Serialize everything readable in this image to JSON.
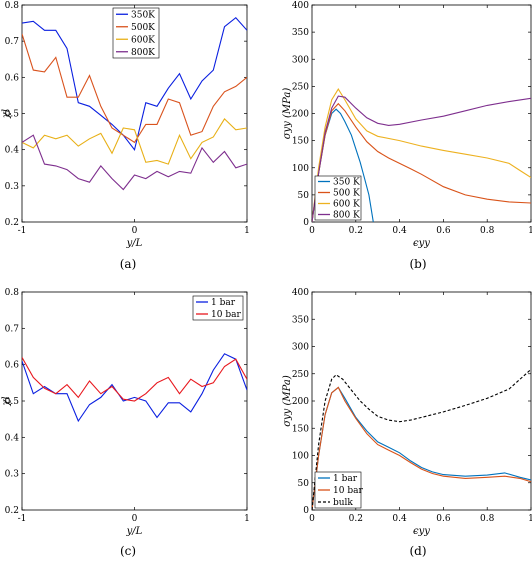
{
  "chart_data": [
    {
      "type": "line",
      "panel": "(a)",
      "xlabel": "y/L",
      "ylabel": "χl",
      "xlim": [
        -1,
        1
      ],
      "ylim": [
        0.2,
        0.8
      ],
      "xticks": [
        -1,
        0,
        1
      ],
      "yticks": [
        0.2,
        0.3,
        0.4,
        0.5,
        0.6,
        0.7,
        0.8
      ],
      "legend": "top-center",
      "x": [
        -1,
        -0.9,
        -0.8,
        -0.7,
        -0.6,
        -0.5,
        -0.4,
        -0.3,
        -0.2,
        -0.1,
        0,
        0.1,
        0.2,
        0.3,
        0.4,
        0.5,
        0.6,
        0.7,
        0.8,
        0.9,
        1
      ],
      "series": [
        {
          "name": "350K",
          "color": "#0a1fe0",
          "values": [
            0.75,
            0.755,
            0.73,
            0.73,
            0.68,
            0.53,
            0.52,
            0.495,
            0.47,
            0.44,
            0.4,
            0.53,
            0.52,
            0.57,
            0.61,
            0.54,
            0.59,
            0.62,
            0.74,
            0.765,
            0.73
          ]
        },
        {
          "name": "500K",
          "color": "#d9531e",
          "values": [
            0.72,
            0.62,
            0.615,
            0.655,
            0.545,
            0.545,
            0.605,
            0.52,
            0.46,
            0.44,
            0.42,
            0.47,
            0.47,
            0.54,
            0.53,
            0.44,
            0.45,
            0.52,
            0.56,
            0.575,
            0.6
          ]
        },
        {
          "name": "600K",
          "color": "#e8b017",
          "values": [
            0.42,
            0.405,
            0.44,
            0.43,
            0.44,
            0.41,
            0.43,
            0.445,
            0.39,
            0.46,
            0.455,
            0.365,
            0.37,
            0.36,
            0.44,
            0.375,
            0.42,
            0.435,
            0.485,
            0.455,
            0.46
          ]
        },
        {
          "name": "800K",
          "color": "#7e2f8e",
          "values": [
            0.42,
            0.44,
            0.36,
            0.355,
            0.345,
            0.32,
            0.31,
            0.355,
            0.32,
            0.29,
            0.33,
            0.32,
            0.34,
            0.325,
            0.34,
            0.335,
            0.405,
            0.365,
            0.395,
            0.35,
            0.36
          ]
        }
      ]
    },
    {
      "type": "line",
      "panel": "(b)",
      "xlabel": "ϵyy",
      "ylabel": "σyy (MPa)",
      "xlim": [
        0,
        1
      ],
      "ylim": [
        0,
        400
      ],
      "xticks": [
        0,
        0.2,
        0.4,
        0.6,
        0.8,
        1
      ],
      "yticks": [
        0,
        50,
        100,
        150,
        200,
        250,
        300,
        350,
        400
      ],
      "legend": "bottom-left",
      "series": [
        {
          "name": "350 K",
          "color": "#0072bd",
          "x": [
            0,
            0.03,
            0.06,
            0.09,
            0.11,
            0.13,
            0.15,
            0.18,
            0.2,
            0.22,
            0.24,
            0.26,
            0.27,
            0.28
          ],
          "values": [
            0,
            90,
            160,
            200,
            208,
            200,
            185,
            160,
            135,
            110,
            80,
            50,
            25,
            0
          ]
        },
        {
          "name": "500 K",
          "color": "#d95319",
          "x": [
            0,
            0.03,
            0.06,
            0.09,
            0.12,
            0.15,
            0.2,
            0.25,
            0.3,
            0.35,
            0.4,
            0.45,
            0.5,
            0.6,
            0.7,
            0.8,
            0.9,
            1.0
          ],
          "values": [
            0,
            90,
            160,
            205,
            218,
            205,
            175,
            148,
            130,
            118,
            108,
            98,
            88,
            65,
            50,
            42,
            37,
            35
          ]
        },
        {
          "name": "600 K",
          "color": "#edb120",
          "x": [
            0,
            0.03,
            0.06,
            0.09,
            0.12,
            0.15,
            0.2,
            0.25,
            0.3,
            0.4,
            0.5,
            0.6,
            0.7,
            0.8,
            0.9,
            0.95,
            1.0
          ],
          "values": [
            0,
            100,
            175,
            225,
            245,
            225,
            190,
            168,
            158,
            150,
            140,
            132,
            125,
            118,
            108,
            95,
            82
          ]
        },
        {
          "name": "800 K",
          "color": "#7e2f8e",
          "x": [
            0,
            0.03,
            0.06,
            0.09,
            0.12,
            0.15,
            0.2,
            0.25,
            0.3,
            0.35,
            0.4,
            0.5,
            0.6,
            0.7,
            0.8,
            0.9,
            1.0
          ],
          "values": [
            0,
            90,
            165,
            210,
            232,
            230,
            210,
            192,
            182,
            178,
            180,
            188,
            195,
            205,
            215,
            222,
            228
          ]
        }
      ]
    },
    {
      "type": "line",
      "panel": "(c)",
      "xlabel": "y/L",
      "ylabel": "χl",
      "xlim": [
        -1,
        1
      ],
      "ylim": [
        0.2,
        0.8
      ],
      "xticks": [
        -1,
        0,
        1
      ],
      "yticks": [
        0.2,
        0.3,
        0.4,
        0.5,
        0.6,
        0.7,
        0.8
      ],
      "legend": "top-right",
      "x": [
        -1,
        -0.9,
        -0.8,
        -0.7,
        -0.6,
        -0.5,
        -0.4,
        -0.3,
        -0.2,
        -0.1,
        0,
        0.1,
        0.2,
        0.3,
        0.4,
        0.5,
        0.6,
        0.7,
        0.8,
        0.9,
        1
      ],
      "series": [
        {
          "name": "1 bar",
          "color": "#0a1fe0",
          "values": [
            0.61,
            0.52,
            0.54,
            0.52,
            0.52,
            0.445,
            0.49,
            0.51,
            0.545,
            0.5,
            0.51,
            0.5,
            0.455,
            0.495,
            0.495,
            0.47,
            0.52,
            0.585,
            0.63,
            0.615,
            0.53
          ]
        },
        {
          "name": "10 bar",
          "color": "#e8181e",
          "values": [
            0.62,
            0.565,
            0.535,
            0.52,
            0.545,
            0.51,
            0.555,
            0.52,
            0.54,
            0.505,
            0.5,
            0.52,
            0.55,
            0.565,
            0.52,
            0.56,
            0.54,
            0.55,
            0.595,
            0.615,
            0.56
          ]
        }
      ]
    },
    {
      "type": "line",
      "panel": "(d)",
      "xlabel": "ϵyy",
      "ylabel": "σyy (MPa)",
      "xlim": [
        0,
        1
      ],
      "ylim": [
        0,
        400
      ],
      "xticks": [
        0,
        0.2,
        0.4,
        0.6,
        0.8,
        1
      ],
      "yticks": [
        0,
        50,
        100,
        150,
        200,
        250,
        300,
        350,
        400
      ],
      "legend": "bottom-left",
      "series": [
        {
          "name": "1 bar",
          "color": "#0072bd",
          "x": [
            0,
            0.03,
            0.06,
            0.09,
            0.12,
            0.15,
            0.2,
            0.25,
            0.3,
            0.35,
            0.4,
            0.45,
            0.5,
            0.55,
            0.6,
            0.7,
            0.8,
            0.88,
            0.95,
            1.0
          ],
          "values": [
            0,
            100,
            175,
            215,
            225,
            205,
            170,
            145,
            125,
            115,
            105,
            90,
            78,
            70,
            65,
            62,
            64,
            68,
            60,
            55
          ]
        },
        {
          "name": "10 bar",
          "color": "#d95319",
          "x": [
            0,
            0.03,
            0.06,
            0.09,
            0.12,
            0.15,
            0.2,
            0.25,
            0.3,
            0.35,
            0.4,
            0.45,
            0.5,
            0.55,
            0.6,
            0.7,
            0.8,
            0.88,
            0.95,
            1.0
          ],
          "values": [
            0,
            100,
            175,
            215,
            225,
            200,
            168,
            140,
            120,
            110,
            100,
            87,
            75,
            67,
            62,
            58,
            60,
            62,
            58,
            52
          ]
        },
        {
          "name": "bulk",
          "color": "#000000",
          "dashed": true,
          "x": [
            0,
            0.03,
            0.06,
            0.09,
            0.11,
            0.14,
            0.18,
            0.22,
            0.26,
            0.3,
            0.35,
            0.4,
            0.45,
            0.5,
            0.6,
            0.7,
            0.8,
            0.9,
            0.95,
            1.0
          ],
          "values": [
            0,
            120,
            200,
            240,
            248,
            240,
            220,
            200,
            185,
            172,
            165,
            162,
            165,
            170,
            180,
            192,
            205,
            222,
            240,
            258
          ]
        }
      ]
    }
  ]
}
